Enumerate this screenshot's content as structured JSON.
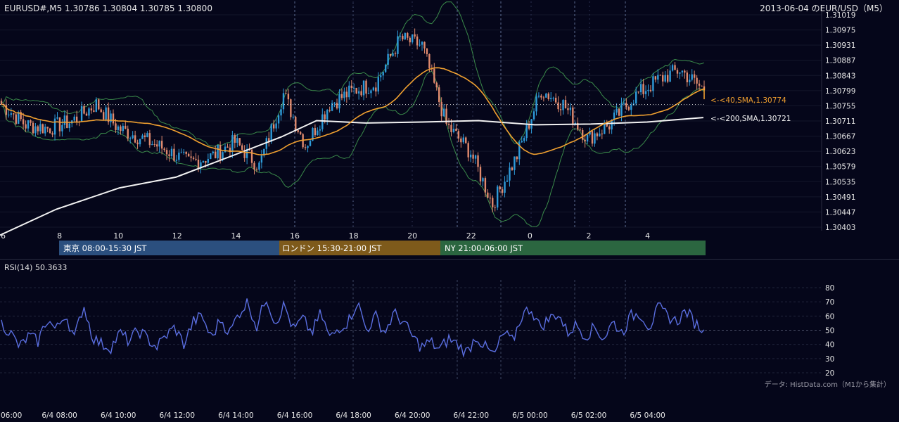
{
  "header": {
    "symbol_ohlc": "EURUSD#,M5 1.30786 1.30804 1.30785 1.30800",
    "title": "2013-06-04 のEUR/USD（M5）"
  },
  "price_axis": {
    "labels": [
      "1.31019",
      "1.30975",
      "1.30931",
      "1.30887",
      "1.30843",
      "1.30799",
      "1.30755",
      "1.30711",
      "1.30667",
      "1.30623",
      "1.30579",
      "1.30535",
      "1.30491",
      "1.30447",
      "1.30403"
    ],
    "range": [
      1.30403,
      1.31019
    ]
  },
  "time_axis_top": [
    "6",
    "8",
    "10",
    "12",
    "14",
    "16",
    "18",
    "20",
    "22",
    "0",
    "2",
    "4"
  ],
  "time_axis_bottom": [
    "06:00",
    "6/4 08:00",
    "6/4 10:00",
    "6/4 12:00",
    "6/4 14:00",
    "6/4 16:00",
    "6/4 18:00",
    "6/4 20:00",
    "6/4 22:00",
    "6/5 00:00",
    "6/5 02:00",
    "6/5 04:00"
  ],
  "sessions": [
    {
      "label": "東京 08:00-15:30 JST",
      "color": "#2b4f7e"
    },
    {
      "label": "ロンドン 15:30-21:00 JST",
      "color": "#7e5a1b"
    },
    {
      "label": "NY 21:00-06:00 JST",
      "color": "#2b6640"
    }
  ],
  "annotations": {
    "sma40": "<-<40,SMA,1.30774",
    "sma200": "<-<200,SMA,1.30721"
  },
  "rsi": {
    "label": "RSI(14) 50.3633",
    "levels": [
      "80",
      "70",
      "60",
      "50",
      "40",
      "30",
      "20"
    ]
  },
  "credit": "データ: HistData.com（M1から集計）",
  "colors": {
    "background": "#05061a",
    "candle_up": "#2e9bd9",
    "candle_down": "#e08a6e",
    "sma40": "#f0a030",
    "sma200": "#f2f2f2",
    "bollinger": "#3a8a4a",
    "rsi_line": "#5a6ee0"
  },
  "chart_data": {
    "type": "candlestick",
    "symbol": "EURUSD",
    "timeframe": "M5",
    "date": "2013-06-04",
    "last": {
      "open": 1.30786,
      "high": 1.30804,
      "low": 1.30785,
      "close": 1.308
    },
    "ylim": [
      1.30403,
      1.31019
    ],
    "indicators": {
      "sma40_last": 1.30774,
      "sma200_last": 1.30721,
      "rsi14_last": 50.3633
    },
    "close_path": [
      {
        "t": "6/4 06:00",
        "close": 1.3076
      },
      {
        "t": "6/4 07:00",
        "close": 1.307
      },
      {
        "t": "6/4 08:00",
        "close": 1.3069
      },
      {
        "t": "6/4 09:00",
        "close": 1.3071
      },
      {
        "t": "6/4 10:00",
        "close": 1.3076
      },
      {
        "t": "6/4 10:30",
        "close": 1.3069
      },
      {
        "t": "6/4 11:00",
        "close": 1.3066
      },
      {
        "t": "6/4 12:00",
        "close": 1.3063
      },
      {
        "t": "6/4 13:00",
        "close": 1.3059
      },
      {
        "t": "6/4 14:00",
        "close": 1.3061
      },
      {
        "t": "6/4 15:00",
        "close": 1.3065
      },
      {
        "t": "6/4 15:30",
        "close": 1.3058
      },
      {
        "t": "6/4 16:00",
        "close": 1.3079
      },
      {
        "t": "6/4 16:30",
        "close": 1.3064
      },
      {
        "t": "6/4 17:00",
        "close": 1.3076
      },
      {
        "t": "6/4 18:00",
        "close": 1.308
      },
      {
        "t": "6/4 19:00",
        "close": 1.3082
      },
      {
        "t": "6/4 20:00",
        "close": 1.3095
      },
      {
        "t": "6/4 21:00",
        "close": 1.3093
      },
      {
        "t": "6/4 21:30",
        "close": 1.307
      },
      {
        "t": "6/4 22:00",
        "close": 1.3062
      },
      {
        "t": "6/4 23:00",
        "close": 1.3047
      },
      {
        "t": "6/5 00:00",
        "close": 1.3061
      },
      {
        "t": "6/5 00:30",
        "close": 1.308
      },
      {
        "t": "6/5 01:00",
        "close": 1.3076
      },
      {
        "t": "6/5 02:00",
        "close": 1.3066
      },
      {
        "t": "6/5 03:00",
        "close": 1.307
      },
      {
        "t": "6/5 03:30",
        "close": 1.3078
      },
      {
        "t": "6/5 04:00",
        "close": 1.3083
      },
      {
        "t": "6/5 05:00",
        "close": 1.3086
      },
      {
        "t": "6/5 05:30",
        "close": 1.308
      }
    ],
    "rsi_path": [
      55,
      48,
      38,
      46,
      42,
      58,
      50,
      62,
      44,
      68,
      45,
      40,
      38,
      48,
      42,
      50,
      44,
      38,
      46,
      52,
      40,
      56,
      60,
      44,
      58,
      48,
      62,
      70,
      52,
      74,
      55,
      68,
      50,
      58,
      48,
      62,
      44,
      52,
      56,
      70,
      50,
      60,
      48,
      62,
      56,
      46,
      38,
      42,
      36,
      44,
      40,
      34,
      46,
      38,
      32,
      48,
      42,
      60,
      66,
      52,
      58,
      62,
      48,
      54,
      46,
      52,
      44,
      56,
      48,
      60,
      62,
      52,
      66,
      60,
      56,
      64,
      55,
      50
    ]
  }
}
